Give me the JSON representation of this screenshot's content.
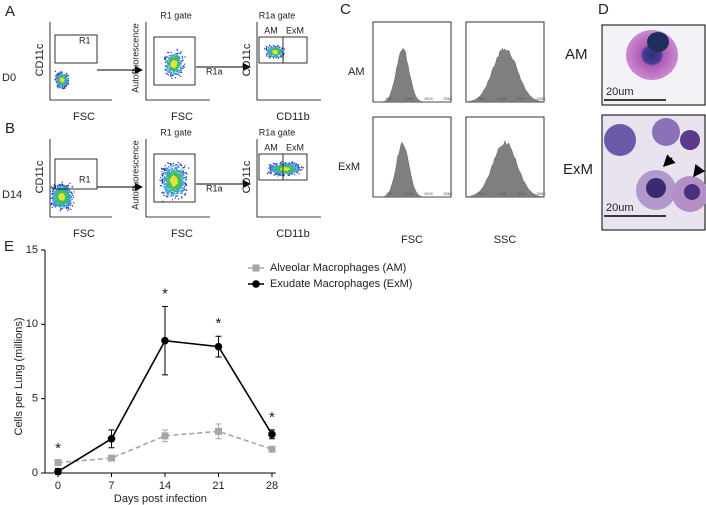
{
  "panels": {
    "A": {
      "label": "A",
      "row": "D0",
      "plot1": {
        "y": "CD11c",
        "x": "FSC",
        "gate": "R1"
      },
      "plot2": {
        "title": "R1 gate",
        "y": "Autofluorescence",
        "x": "FSC",
        "gate": "R1a"
      },
      "plot3": {
        "title": "R1a gate",
        "y": "CD11c",
        "x": "CD11b",
        "gates": [
          "AM",
          "ExM"
        ]
      }
    },
    "B": {
      "label": "B",
      "row": "D14",
      "plot1": {
        "y": "CD11c",
        "x": "FSC",
        "gate": "R1"
      },
      "plot2": {
        "title": "R1 gate",
        "y": "Autofluorescence",
        "x": "FSC",
        "gate": "R1a"
      },
      "plot3": {
        "title": "R1a gate",
        "y": "CD11c",
        "x": "CD11b",
        "gates": [
          "AM",
          "ExM"
        ]
      }
    },
    "C": {
      "label": "C",
      "rows": [
        "AM",
        "ExM"
      ],
      "columns": [
        "FSC",
        "SSC"
      ],
      "ticks": [
        "64K",
        "128K",
        "192K",
        "256K"
      ]
    },
    "D": {
      "label": "D",
      "rows": [
        "AM",
        "ExM"
      ],
      "scale": "20um"
    },
    "E": {
      "label": "E"
    }
  },
  "chart_data": {
    "type": "line",
    "x_label": "Days post infection",
    "y_label": "Cells per Lung (millions)",
    "x": [
      0,
      7,
      14,
      21,
      28
    ],
    "series": [
      {
        "name": "Alveolar Macrophages (AM)",
        "color": "#a6a6a6",
        "marker": "square",
        "dashed": true,
        "values": [
          0.7,
          1.0,
          2.5,
          2.8,
          1.6
        ],
        "errors": [
          0.1,
          0.1,
          0.4,
          0.5,
          0.1
        ]
      },
      {
        "name": "Exudate Macrophages (ExM)",
        "color": "#000000",
        "marker": "circle",
        "dashed": false,
        "values": [
          0.1,
          2.3,
          8.9,
          8.5,
          2.6
        ],
        "errors": [
          0.2,
          0.6,
          2.3,
          0.7,
          0.3
        ]
      }
    ],
    "annotations": {
      "x": [
        0,
        14,
        21,
        28
      ],
      "label": "*"
    },
    "xlim": [
      -1.7,
      28.5
    ],
    "ylim": [
      0,
      15
    ],
    "xticks": [
      0,
      7,
      14,
      21,
      28
    ],
    "yticks": [
      0,
      5,
      10,
      15
    ]
  }
}
